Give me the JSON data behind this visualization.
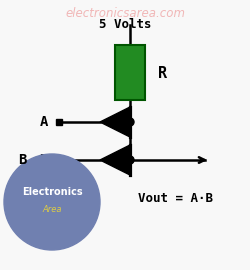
{
  "bg_color": "#f8f8f8",
  "watermark_text": "electronicsarea.com",
  "watermark_color": "#f0b0b0",
  "watermark_fontsize": 8.5,
  "title_text": "5 Volts",
  "title_color": "#000000",
  "title_fontsize": 9,
  "resistor_color": "#228B22",
  "resistor_edge_color": "#005500",
  "R_label": "R",
  "R_fontsize": 11,
  "wire_color": "#000000",
  "wire_lw": 1.8,
  "diode_color": "#000000",
  "A_label": "A",
  "B_label": "B",
  "label_fontsize": 10,
  "vout_label": "Vout = A·B",
  "vout_fontsize": 9,
  "logo_circle_color": "#7080b0",
  "logo_text1": "Electronics",
  "logo_text2": "Area",
  "logo_color": "#ffffff",
  "logo_yellow": "#ddcc44",
  "logo_fontsize": 7
}
